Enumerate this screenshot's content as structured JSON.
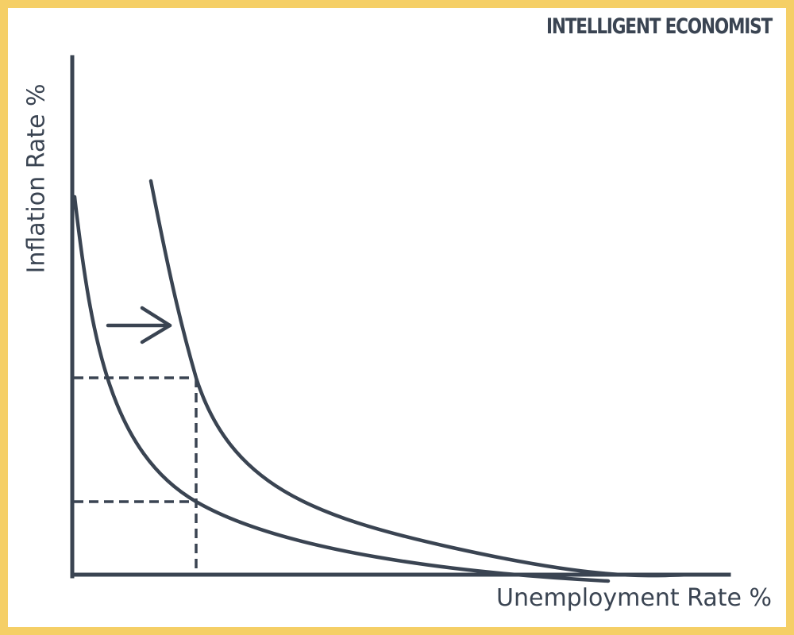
{
  "brand": "INTELLIGENT ECONOMIST",
  "labels": {
    "y_axis": "Inflation Rate %",
    "x_axis": "Unemployment Rate %"
  },
  "colors": {
    "ink": "#3a4452",
    "frame": "#f5cf66",
    "background": "#ffffff"
  },
  "diagram": {
    "curves": [
      {
        "id": "original-curve"
      },
      {
        "id": "shifted-curve"
      }
    ],
    "shift_direction": "right",
    "guides": [
      "upper-dashed-guide",
      "lower-dashed-guide",
      "vertical-dashed-guide"
    ]
  }
}
